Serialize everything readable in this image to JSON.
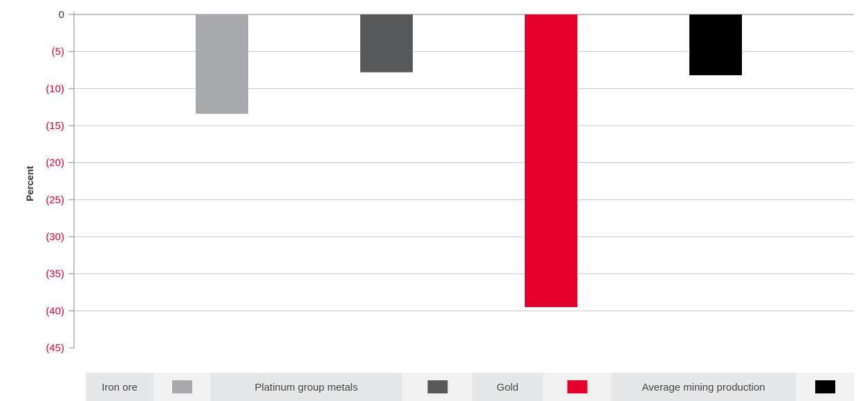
{
  "chart_data": {
    "type": "bar",
    "categories": [
      "Iron ore",
      "Platinum group metals",
      "Gold",
      "Average mining production"
    ],
    "values": [
      -13.4,
      -7.8,
      -39.5,
      -8.2
    ],
    "colors": [
      "#a7a9ac",
      "#58595b",
      "#e4002b",
      "#000000"
    ],
    "ylabel": "Percent",
    "ylim": [
      -45,
      0
    ],
    "yticks": [
      0,
      -5,
      -10,
      -15,
      -20,
      -25,
      -30,
      -35,
      -40,
      -45
    ],
    "ytick_labels": [
      "0",
      "(5)",
      "(10)",
      "(15)",
      "(20)",
      "(25)",
      "(30)",
      "(35)",
      "(40)",
      "(45)"
    ],
    "zero_label_color": "#333333",
    "negative_label_color": "#e4002b",
    "grid": true,
    "legend_position": "bottom",
    "legend_background": "#f1f1f2",
    "legend": [
      {
        "label": "Iron ore",
        "color": "#a7a9ac"
      },
      {
        "label": "Platinum group metals",
        "color": "#58595b"
      },
      {
        "label": "Gold",
        "color": "#e4002b"
      },
      {
        "label": "Average mining production",
        "color": "#000000"
      }
    ]
  }
}
